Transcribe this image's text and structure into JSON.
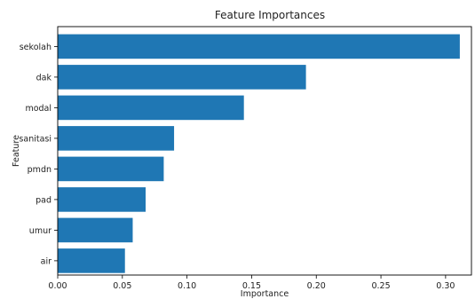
{
  "chart_data": {
    "type": "bar",
    "orientation": "horizontal",
    "title": "Feature Importances",
    "xlabel": "Importance",
    "ylabel": "Feature",
    "categories": [
      "sekolah",
      "dak",
      "modal",
      "sanitasi",
      "pmdn",
      "pad",
      "umur",
      "air"
    ],
    "values": [
      0.311,
      0.192,
      0.144,
      0.09,
      0.082,
      0.068,
      0.058,
      0.052
    ],
    "xlim": [
      0,
      0.32
    ],
    "xticks": [
      0.0,
      0.05,
      0.1,
      0.15,
      0.2,
      0.25,
      0.3
    ],
    "xtick_labels": [
      "0.00",
      "0.05",
      "0.10",
      "0.15",
      "0.20",
      "0.25",
      "0.30"
    ],
    "grid": false,
    "colors": {
      "bar": "#1f77b4"
    }
  }
}
